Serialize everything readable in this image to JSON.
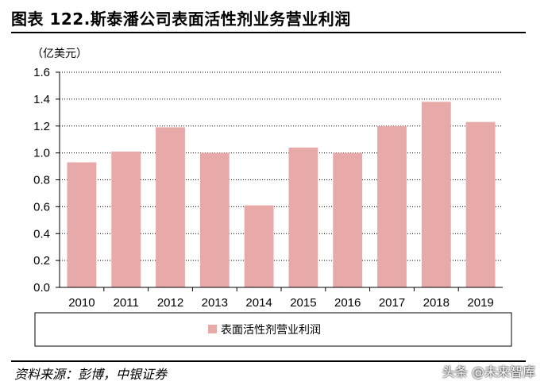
{
  "header": {
    "title": "图表 122.斯泰潘公司表面活性剂业务营业利润"
  },
  "footer": {
    "source": "资料来源：彭博，中银证券",
    "watermark_prefix": "头条 ",
    "watermark_main": "@未来智库"
  },
  "colors": {
    "bar": "#e8a9a9",
    "grid": "#000000",
    "axis": "#000000"
  },
  "chart_data": {
    "type": "bar",
    "title": "",
    "unit_label": "（亿美元）",
    "xlabel": "",
    "ylabel": "",
    "categories": [
      "2010",
      "2011",
      "2012",
      "2013",
      "2014",
      "2015",
      "2016",
      "2017",
      "2018",
      "2019"
    ],
    "series": [
      {
        "name": "表面活性剂营业利润",
        "values": [
          0.93,
          1.01,
          1.19,
          1.0,
          0.61,
          1.04,
          1.0,
          1.2,
          1.38,
          1.23
        ]
      }
    ],
    "ylim": [
      0,
      1.6
    ],
    "yticks": [
      "0.0",
      "0.2",
      "0.4",
      "0.6",
      "0.8",
      "1.0",
      "1.2",
      "1.4",
      "1.6"
    ],
    "grid": true,
    "legend_position": "bottom"
  }
}
